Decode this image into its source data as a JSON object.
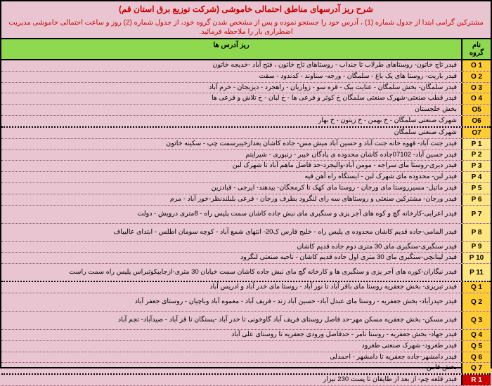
{
  "title_color": "#cc0000",
  "subtitle_color": "#cc0000",
  "header_bg": "#8fd94f",
  "section_colors": {
    "O": "#ffcc33",
    "P": "#ffe680",
    "Q": "#ffcc33",
    "R": "#cc0000"
  },
  "title": "شرح ریز آدرسهای مناطق احتمالی خاموشی (شرکت توزیع برق استان قم)",
  "subtitle": "مشترکین گرامی ابتدا از جدول شماره (1) ، آدرس خود را جستجو نموده و پس از مشخص شدن گروه خود، از جدول شماره (2) روز و ساعت احتمالی خاموشی مدیریت اضطراری بار را ملاحظه فرمائید.",
  "header_group": "نام\nگروه",
  "header_address": "ریز آدرس ها",
  "rows": [
    {
      "g": "O 1",
      "s": "O",
      "a": "فیدر تاج خاتون- روستاهای طرلاب تا جنداب - روستاهای تاج خاتون ، فتح آباد -خدیجه خاتون"
    },
    {
      "g": "O 2",
      "s": "O",
      "a": "فیدر باریت- روستا های یک باغ - سلمگان - ورجه- سناوند - کدندود - سقت"
    },
    {
      "g": "O 3",
      "s": "O",
      "a": "فیدر سلمگان- بخش سلمگان - عنایت بیک - قره سو - زواریان - راهجرد - دیزیجان - خرم آباد"
    },
    {
      "g": "O 4",
      "s": "O",
      "a": "فیدر قطب صنعتی-شهرک صنعتی سلمگان خ کوثر و فرعی ها - خ لبان - خ تلاش و فرعی ها"
    },
    {
      "g": "O5",
      "s": "O",
      "a": "بخش خلجستان"
    },
    {
      "g": "O6",
      "s": "O",
      "a": "شهرک صنعتی سلمگان - خ بهمن - خ زیتون - خ بهار",
      "end": true
    },
    {
      "g": "O7",
      "s": "O",
      "a": "شهرک صنعتی سلمگان"
    },
    {
      "g": "P 1",
      "s": "P",
      "a": "فیدر جنت آباد- قهوه خانه جنت آباد و حسین آباد میش مس- جاده کاشان بعدازخیبرسمت چپ - سکینه خاتون"
    },
    {
      "g": "P 2",
      "s": "P",
      "a": "فیدر حسین آباد- 07102جاده کاشان محدوده ی پادگان خیبر - زنبوری - شیرایتم"
    },
    {
      "g": "P 3",
      "s": "P",
      "a": "فیدر دیری-روستا مای سراجه - مومن آباد-والیجرد-حد فاصل ماهم آباد تا شهرک لبن"
    },
    {
      "g": "P 4",
      "s": "P",
      "a": "فیدر لبن- محدوده مای شهرک لبن - ایستگاه راه آهن قیه"
    },
    {
      "g": "P 5",
      "s": "P",
      "a": "فیدر ماتیل- مسیرروستا مای ورجان - روستا مای کهک تا کرمجگان- بیدهند- ایرجی - قیادزین"
    },
    {
      "g": "P 6",
      "s": "P",
      "a": "فیدر ورجان- مشترکین صنعتی و روستاهای سه رای لنگرود بطرف ورجان - فرعی بلبلندنظر-خور آباد - مرم"
    },
    {
      "g": "P 7",
      "s": "P",
      "a": "فیدر اعرابی-کارخانه گچ و کوه های آجر پزی و سنگبری مای نبش جاده کاشان سمت پلیس راه - 8متری درویش - دولت",
      "t": true
    },
    {
      "g": "P 8",
      "s": "P",
      "a": "فیدر المامی-جاده قدیم کاشان محدوده ی پلیس راه - خلیج فارس ک20- انتهای شمع آباد - کوچه سومان اطلس - ابتدای عالیباف",
      "t": true
    },
    {
      "g": "P 9",
      "s": "P",
      "a": "فیدر سنگبری-سنگبری مای 30 متری دوم جاده قدیم کاشان"
    },
    {
      "g": "P 10",
      "s": "P",
      "a": "فیدر لینانچی-سنگبری مای 30 متری اول جاده قدیم کاشان - ناحیه صنعتی لنگرود"
    },
    {
      "g": "P 11",
      "s": "P",
      "a": "فیدر نیگاران-کوره های آجر پزی و سنگبری ها و کارخانه گچ مای نبش جاده کاشان سمت خیابان 30 متری-ازجابیکوتبراس پلیس راه سمت راست",
      "t": true,
      "end": true
    },
    {
      "g": "Q 1",
      "s": "Q",
      "a": "فیدر تبریزی- بخش جعفریه روستا مای باقر آباد تا نور آباد - روستا مای خدر آباد و ادریس آباد"
    },
    {
      "g": "Q 2",
      "s": "Q",
      "a": "فیدر حیدرآباد- بخش جعفریه - روستا مای عبدل آباد- حسین آباد زند - فریف آباد - معموه آباد وباچیان - روستای جعفر آباد",
      "t": true
    },
    {
      "g": "Q 3",
      "s": "Q",
      "a": "فیدر مسکن- بخش جعفریه مسکن مهر-حد فاصل روستای فریف آباد گاوخونی تا خدر آباد -پستگان تا قز آباد - صیدآباد- تجم آباد",
      "t": true
    },
    {
      "g": "Q 4",
      "s": "Q",
      "a": "فیدر جهاد- بخش جعفریه - روستا نامر - حدفاصل ورودی جعفریه تا روستای علی آباد"
    },
    {
      "g": "Q 5",
      "s": "Q",
      "a": "فیدر طغرود- شهرک صنعتی طغرود"
    },
    {
      "g": "Q 6",
      "s": "Q",
      "a": "فیدر دامشهر-جاده جعفریه تا دامشهر - احمدلی"
    },
    {
      "g": "Q 7",
      "s": "Q",
      "a": "بخش قامن",
      "end": true
    },
    {
      "g": "R 1",
      "s": "R",
      "a": "فیدر قلعه چم- از بعد از طایقان تا پست 230 نیزار"
    }
  ]
}
